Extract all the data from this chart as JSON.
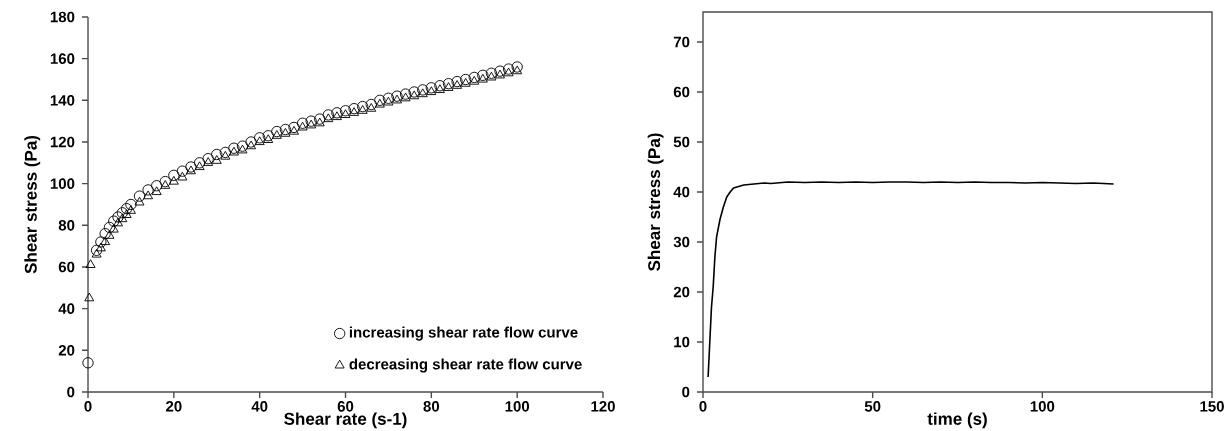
{
  "chart_data": [
    {
      "type": "scatter",
      "xlabel": "Shear rate (s-1)",
      "ylabel": "Shear stress (Pa)",
      "xlim": [
        0,
        120
      ],
      "ylim": [
        0,
        180
      ],
      "xticks": [
        0,
        20,
        40,
        60,
        80,
        100,
        120
      ],
      "yticks": [
        0,
        20,
        40,
        60,
        80,
        100,
        120,
        140,
        160,
        180
      ],
      "legend": "bottom right",
      "series": [
        {
          "name": "increasing shear rate flow curve",
          "color": "#000000",
          "marker": "circle",
          "x": [
            0,
            2,
            3,
            4,
            5,
            6,
            7,
            8,
            9,
            10,
            12,
            14,
            16,
            18,
            20,
            22,
            24,
            26,
            28,
            30,
            32,
            34,
            36,
            38,
            40,
            42,
            44,
            46,
            48,
            50,
            52,
            54,
            56,
            58,
            60,
            62,
            64,
            66,
            68,
            70,
            72,
            74,
            76,
            78,
            80,
            82,
            84,
            86,
            88,
            90,
            92,
            94,
            96,
            98,
            100
          ],
          "values": [
            14,
            68,
            72,
            76,
            79,
            82,
            84,
            86,
            88,
            90,
            94,
            97,
            99,
            101,
            104,
            106,
            108,
            110,
            112,
            114,
            115,
            117,
            118,
            120,
            122,
            123,
            125,
            126,
            127,
            129,
            130,
            131,
            133,
            134,
            135,
            136,
            137,
            138,
            140,
            141,
            142,
            143,
            144,
            145,
            146,
            147,
            148,
            149,
            150,
            151,
            152,
            153,
            154,
            155,
            156
          ]
        },
        {
          "name": "decreasing shear rate flow curve",
          "color": "#000000",
          "marker": "triangle",
          "x": [
            0.3,
            0.6,
            2,
            3,
            4,
            5,
            6,
            7,
            8,
            9,
            10,
            12,
            14,
            16,
            18,
            20,
            22,
            24,
            26,
            28,
            30,
            32,
            34,
            36,
            38,
            40,
            42,
            44,
            46,
            48,
            50,
            52,
            54,
            56,
            58,
            60,
            62,
            64,
            66,
            68,
            70,
            72,
            74,
            76,
            78,
            80,
            82,
            84,
            86,
            88,
            90,
            92,
            94,
            96,
            98,
            100
          ],
          "values": [
            45,
            61,
            66,
            69,
            72,
            75,
            78,
            81,
            83,
            85,
            87,
            91,
            94,
            96,
            99,
            101,
            103,
            106,
            108,
            110,
            111,
            113,
            115,
            116,
            118,
            120,
            121,
            123,
            124,
            125,
            127,
            128,
            129,
            131,
            132,
            133,
            134,
            135,
            136,
            138,
            139,
            140,
            141,
            142,
            143,
            144,
            145,
            146,
            147,
            148,
            149,
            150,
            151,
            152,
            153,
            154
          ]
        }
      ]
    },
    {
      "type": "line",
      "xlabel": "time (s)",
      "ylabel": "Shear stress (Pa)",
      "xlim": [
        0,
        150
      ],
      "ylim": [
        0,
        76
      ],
      "xticks": [
        0,
        50,
        100,
        150
      ],
      "yticks": [
        0,
        10,
        20,
        30,
        40,
        50,
        60,
        70
      ],
      "legend": false,
      "marker": "none",
      "line_style": "solid",
      "series": [
        {
          "color": "#000000",
          "x": [
            1.5,
            2,
            2.5,
            3,
            3.5,
            4,
            5,
            6,
            7,
            8,
            9,
            10,
            12,
            15,
            18,
            20,
            25,
            30,
            35,
            40,
            45,
            50,
            55,
            60,
            65,
            70,
            75,
            80,
            85,
            90,
            95,
            100,
            105,
            110,
            115,
            121
          ],
          "values": [
            3,
            10,
            17,
            21,
            27,
            31,
            34.5,
            37,
            39,
            40,
            40.8,
            41,
            41.4,
            41.6,
            41.8,
            41.7,
            42,
            41.9,
            42,
            41.9,
            42,
            41.9,
            42,
            42,
            41.9,
            42,
            41.9,
            42,
            41.9,
            41.9,
            41.8,
            41.9,
            41.8,
            41.7,
            41.8,
            41.6
          ]
        }
      ]
    }
  ]
}
